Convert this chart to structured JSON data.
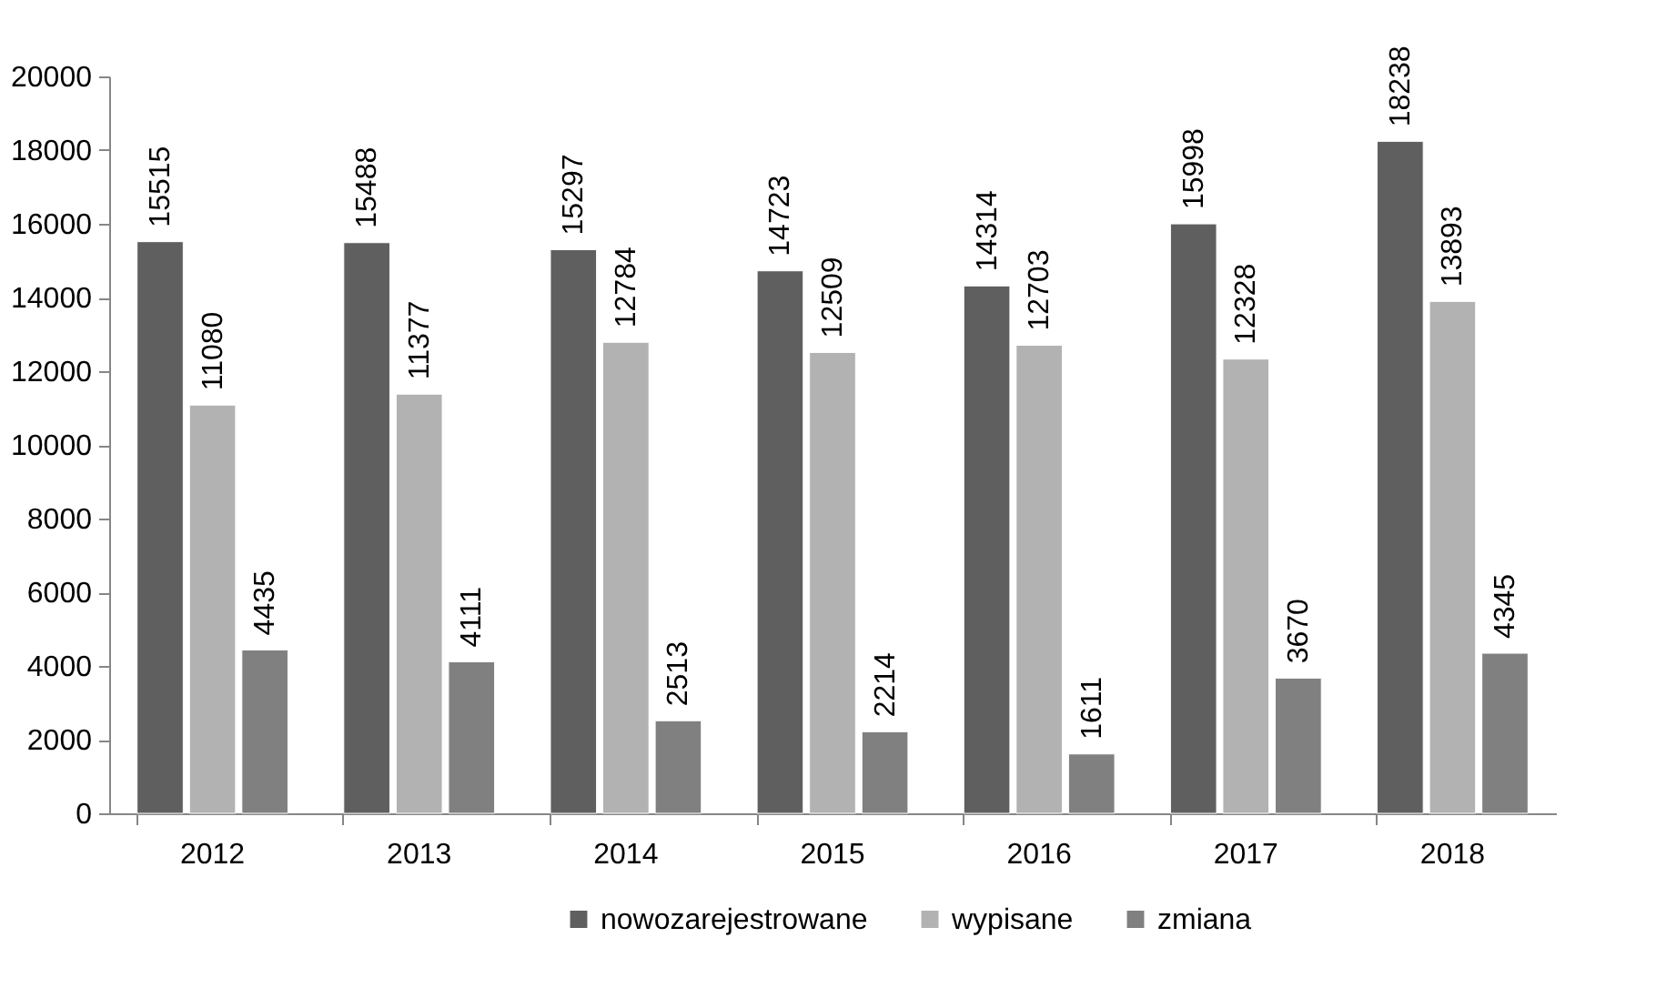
{
  "chart_data": {
    "type": "bar",
    "categories": [
      "2012",
      "2013",
      "2014",
      "2015",
      "2016",
      "2017",
      "2018"
    ],
    "series": [
      {
        "name": "nowozarejestrowane",
        "color": "#5f5f5f",
        "values": [
          15515,
          15488,
          15297,
          14723,
          14314,
          15998,
          18238
        ]
      },
      {
        "name": "wypisane",
        "color": "#b2b2b2",
        "values": [
          11080,
          11377,
          12784,
          12509,
          12703,
          12328,
          13893
        ]
      },
      {
        "name": "zmiana",
        "color": "#808080",
        "values": [
          4435,
          4111,
          2513,
          2214,
          1611,
          3670,
          4345
        ]
      }
    ],
    "ylim": [
      0,
      20000
    ],
    "yticks": [
      0,
      2000,
      4000,
      6000,
      8000,
      10000,
      12000,
      14000,
      16000,
      18000,
      20000
    ],
    "grid": false,
    "legend": "bottom",
    "data_labels": true
  }
}
